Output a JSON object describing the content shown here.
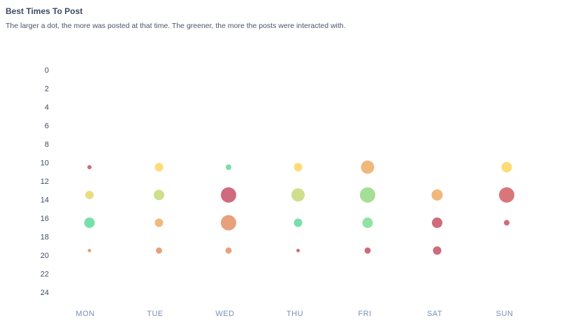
{
  "chart_data": {
    "type": "scatter",
    "title": "Best Times To Post",
    "subtitle": "The larger a dot, the more was posted at that time. The greener, the more the posts were interacted with.",
    "categories": [
      "MON",
      "TUE",
      "WED",
      "THU",
      "FRI",
      "SAT",
      "SUN"
    ],
    "yticks": [
      "0",
      "2",
      "4",
      "6",
      "8",
      "10",
      "12",
      "14",
      "16",
      "18",
      "20",
      "22",
      "24"
    ],
    "ylim": [
      0,
      24
    ],
    "y_reversed": true,
    "xlabel": "",
    "ylabel": "",
    "points": [
      {
        "day": "MON",
        "hour": 10.5,
        "size": 3,
        "color": "#c95b6e"
      },
      {
        "day": "MON",
        "hour": 13.5,
        "size": 6,
        "color": "#e9d872"
      },
      {
        "day": "MON",
        "hour": 16.5,
        "size": 7.5,
        "color": "#68dd9f"
      },
      {
        "day": "MON",
        "hour": 19.5,
        "size": 2.5,
        "color": "#e4976f"
      },
      {
        "day": "TUE",
        "hour": 10.5,
        "size": 6,
        "color": "#fed766"
      },
      {
        "day": "TUE",
        "hour": 13.5,
        "size": 7.5,
        "color": "#c9dc80"
      },
      {
        "day": "TUE",
        "hour": 16.5,
        "size": 6,
        "color": "#efb06d"
      },
      {
        "day": "TUE",
        "hour": 19.5,
        "size": 4.5,
        "color": "#e4976f"
      },
      {
        "day": "WED",
        "hour": 10.5,
        "size": 4,
        "color": "#68dd9f"
      },
      {
        "day": "WED",
        "hour": 13.5,
        "size": 11,
        "color": "#c95b6e"
      },
      {
        "day": "WED",
        "hour": 16.5,
        "size": 11,
        "color": "#e4976f"
      },
      {
        "day": "WED",
        "hour": 19.5,
        "size": 4.5,
        "color": "#e4976f"
      },
      {
        "day": "THU",
        "hour": 10.5,
        "size": 6,
        "color": "#fed766"
      },
      {
        "day": "THU",
        "hour": 13.5,
        "size": 9.5,
        "color": "#c9dc80"
      },
      {
        "day": "THU",
        "hour": 16.5,
        "size": 6,
        "color": "#68dd9f"
      },
      {
        "day": "THU",
        "hour": 19.5,
        "size": 2.5,
        "color": "#c95b6e"
      },
      {
        "day": "FRI",
        "hour": 10.5,
        "size": 9.5,
        "color": "#efb06d"
      },
      {
        "day": "FRI",
        "hour": 13.5,
        "size": 11,
        "color": "#9bdc8a"
      },
      {
        "day": "FRI",
        "hour": 16.5,
        "size": 7.5,
        "color": "#86df98"
      },
      {
        "day": "FRI",
        "hour": 19.5,
        "size": 4.5,
        "color": "#c95b6e"
      },
      {
        "day": "SAT",
        "hour": 13.5,
        "size": 8,
        "color": "#efb06d"
      },
      {
        "day": "SAT",
        "hour": 16.5,
        "size": 7.5,
        "color": "#c95b6e"
      },
      {
        "day": "SAT",
        "hour": 19.5,
        "size": 6,
        "color": "#c95b6e"
      },
      {
        "day": "SUN",
        "hour": 10.5,
        "size": 7.5,
        "color": "#fed766"
      },
      {
        "day": "SUN",
        "hour": 13.5,
        "size": 11,
        "color": "#d4676a"
      },
      {
        "day": "SUN",
        "hour": 16.5,
        "size": 4,
        "color": "#c95b6e"
      }
    ]
  }
}
